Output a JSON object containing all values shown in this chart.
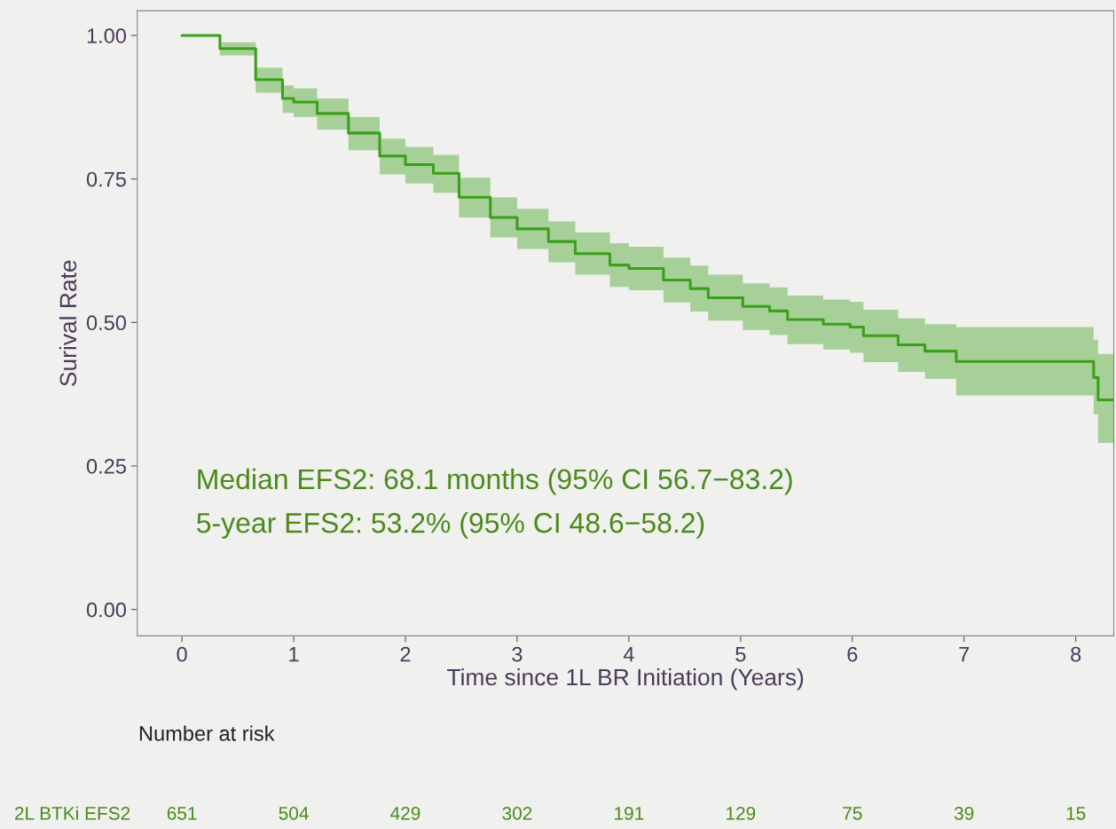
{
  "chart_data": {
    "type": "step",
    "xlabel": "Time since 1L BR Initiation (Years)",
    "ylabel": "Surival Rate",
    "xlim": [
      -0.4,
      8.34
    ],
    "ylim": [
      -0.046,
      1.043
    ],
    "xticks": [
      0,
      1,
      2,
      3,
      4,
      5,
      6,
      7,
      8
    ],
    "yticks": [
      {
        "value": 0,
        "label": "0.00"
      },
      {
        "value": 0.25,
        "label": "0.25"
      },
      {
        "value": 0.5,
        "label": "0.50"
      },
      {
        "value": 0.75,
        "label": "0.75"
      },
      {
        "value": 1,
        "label": "1.00"
      }
    ],
    "grid": false,
    "legend": false,
    "series": [
      {
        "color": "#3aa01a",
        "x": [
          0,
          0.34,
          0.66,
          0.9,
          1.0,
          1.21,
          1.49,
          1.77,
          2.0,
          2.25,
          2.48,
          2.76,
          3.0,
          3.28,
          3.52,
          3.83,
          4.0,
          4.31,
          4.55,
          4.71,
          5.02,
          5.26,
          5.42,
          5.74,
          5.98,
          6.1,
          6.41,
          6.65,
          6.93,
          8.16,
          8.2,
          8.34
        ],
        "values": [
          1.0,
          0.977,
          0.923,
          0.89,
          0.884,
          0.864,
          0.83,
          0.79,
          0.775,
          0.76,
          0.718,
          0.683,
          0.663,
          0.641,
          0.62,
          0.6,
          0.594,
          0.574,
          0.559,
          0.543,
          0.528,
          0.52,
          0.505,
          0.497,
          0.492,
          0.477,
          0.461,
          0.45,
          0.432,
          0.404,
          0.365,
          0.365
        ],
        "lower": [
          1.0,
          0.965,
          0.9,
          0.865,
          0.858,
          0.836,
          0.8,
          0.758,
          0.742,
          0.726,
          0.683,
          0.648,
          0.628,
          0.605,
          0.583,
          0.562,
          0.556,
          0.535,
          0.519,
          0.503,
          0.487,
          0.478,
          0.462,
          0.453,
          0.447,
          0.431,
          0.414,
          0.402,
          0.373,
          0.34,
          0.29,
          0.28
        ],
        "upper": [
          1.0,
          0.988,
          0.944,
          0.913,
          0.908,
          0.89,
          0.858,
          0.82,
          0.806,
          0.792,
          0.752,
          0.718,
          0.698,
          0.676,
          0.657,
          0.638,
          0.632,
          0.613,
          0.599,
          0.583,
          0.568,
          0.561,
          0.547,
          0.54,
          0.536,
          0.522,
          0.507,
          0.497,
          0.492,
          0.47,
          0.445,
          0.44
        ]
      }
    ],
    "annotations": [
      "Median EFS2: 68.1 months (95% CI 56.7−83.2)",
      "5-year EFS2: 53.2% (95% CI 48.6−58.2)",
      "Number at risk",
      "2L BTKi EFS2",
      "651",
      "504",
      "429",
      "302",
      "191",
      "129",
      "75",
      "39",
      "15"
    ]
  }
}
